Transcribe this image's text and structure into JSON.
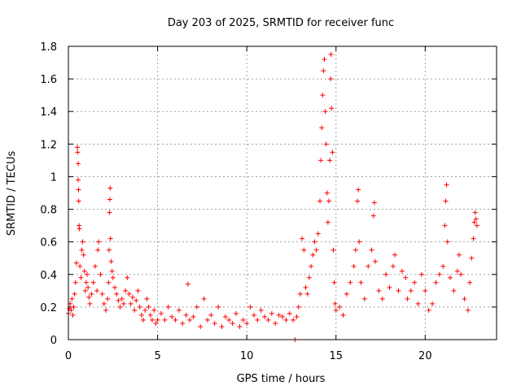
{
  "chart_data": {
    "type": "scatter",
    "title": "Day 203 of 2025, SRMTID for receiver func",
    "xlabel": "GPS time / hours",
    "ylabel": "SRMTID / TECUs",
    "xlim": [
      0,
      24
    ],
    "ylim": [
      0,
      1.8
    ],
    "x_ticks": [
      0,
      5,
      10,
      15,
      20
    ],
    "x_tick_labels": [
      "0",
      "5",
      "10",
      "15",
      "20"
    ],
    "y_ticks": [
      0,
      0.2,
      0.4,
      0.6,
      0.8,
      1.0,
      1.2,
      1.4,
      1.6,
      1.8
    ],
    "y_tick_labels": [
      "0",
      "0.2",
      "0.4",
      "0.6",
      "0.8",
      "1",
      "1.2",
      "1.4",
      "1.6",
      "1.8"
    ],
    "grid": true,
    "marker": "+",
    "series": [
      {
        "name": "SRMTID",
        "color": "#ff0000",
        "points": [
          [
            0.0,
            0.16
          ],
          [
            0.05,
            0.19
          ],
          [
            0.1,
            0.22
          ],
          [
            0.15,
            0.18
          ],
          [
            0.2,
            0.25
          ],
          [
            0.25,
            0.15
          ],
          [
            0.3,
            0.2
          ],
          [
            0.35,
            0.28
          ],
          [
            0.4,
            0.35
          ],
          [
            0.45,
            0.47
          ],
          [
            0.5,
            1.18
          ],
          [
            0.52,
            1.15
          ],
          [
            0.55,
            1.08
          ],
          [
            0.55,
            0.98
          ],
          [
            0.57,
            0.92
          ],
          [
            0.58,
            0.85
          ],
          [
            0.6,
            0.7
          ],
          [
            0.62,
            0.68
          ],
          [
            0.65,
            0.45
          ],
          [
            0.7,
            0.38
          ],
          [
            0.75,
            0.55
          ],
          [
            0.8,
            0.6
          ],
          [
            0.85,
            0.52
          ],
          [
            0.9,
            0.42
          ],
          [
            0.95,
            0.3
          ],
          [
            1.0,
            0.35
          ],
          [
            1.05,
            0.4
          ],
          [
            1.1,
            0.32
          ],
          [
            1.15,
            0.26
          ],
          [
            1.2,
            0.22
          ],
          [
            1.3,
            0.28
          ],
          [
            1.4,
            0.35
          ],
          [
            1.5,
            0.45
          ],
          [
            1.6,
            0.3
          ],
          [
            1.65,
            0.55
          ],
          [
            1.7,
            0.6
          ],
          [
            1.8,
            0.4
          ],
          [
            1.9,
            0.28
          ],
          [
            2.0,
            0.22
          ],
          [
            2.1,
            0.18
          ],
          [
            2.2,
            0.25
          ],
          [
            2.25,
            0.35
          ],
          [
            2.28,
            0.55
          ],
          [
            2.3,
            0.78
          ],
          [
            2.32,
            0.86
          ],
          [
            2.34,
            0.93
          ],
          [
            2.36,
            0.62
          ],
          [
            2.4,
            0.48
          ],
          [
            2.45,
            0.42
          ],
          [
            2.5,
            0.38
          ],
          [
            2.6,
            0.32
          ],
          [
            2.7,
            0.28
          ],
          [
            2.8,
            0.24
          ],
          [
            2.9,
            0.2
          ],
          [
            3.0,
            0.25
          ],
          [
            3.1,
            0.22
          ],
          [
            3.2,
            0.3
          ],
          [
            3.3,
            0.38
          ],
          [
            3.4,
            0.28
          ],
          [
            3.5,
            0.22
          ],
          [
            3.6,
            0.26
          ],
          [
            3.7,
            0.18
          ],
          [
            3.8,
            0.24
          ],
          [
            3.9,
            0.3
          ],
          [
            4.0,
            0.2
          ],
          [
            4.1,
            0.15
          ],
          [
            4.2,
            0.12
          ],
          [
            4.3,
            0.18
          ],
          [
            4.4,
            0.25
          ],
          [
            4.5,
            0.2
          ],
          [
            4.6,
            0.15
          ],
          [
            4.7,
            0.12
          ],
          [
            4.8,
            0.18
          ],
          [
            4.9,
            0.1
          ],
          [
            5.0,
            0.12
          ],
          [
            5.2,
            0.16
          ],
          [
            5.4,
            0.12
          ],
          [
            5.6,
            0.2
          ],
          [
            5.8,
            0.14
          ],
          [
            6.0,
            0.12
          ],
          [
            6.2,
            0.18
          ],
          [
            6.4,
            0.1
          ],
          [
            6.6,
            0.15
          ],
          [
            6.7,
            0.34
          ],
          [
            6.8,
            0.12
          ],
          [
            7.0,
            0.14
          ],
          [
            7.2,
            0.2
          ],
          [
            7.4,
            0.08
          ],
          [
            7.6,
            0.25
          ],
          [
            7.8,
            0.12
          ],
          [
            8.0,
            0.15
          ],
          [
            8.2,
            0.1
          ],
          [
            8.4,
            0.2
          ],
          [
            8.6,
            0.08
          ],
          [
            8.8,
            0.14
          ],
          [
            9.0,
            0.12
          ],
          [
            9.2,
            0.1
          ],
          [
            9.4,
            0.16
          ],
          [
            9.6,
            0.08
          ],
          [
            9.8,
            0.12
          ],
          [
            10.0,
            0.1
          ],
          [
            10.2,
            0.2
          ],
          [
            10.4,
            0.15
          ],
          [
            10.6,
            0.12
          ],
          [
            10.8,
            0.18
          ],
          [
            11.0,
            0.14
          ],
          [
            11.2,
            0.12
          ],
          [
            11.4,
            0.16
          ],
          [
            11.6,
            0.1
          ],
          [
            11.8,
            0.15
          ],
          [
            12.0,
            0.14
          ],
          [
            12.2,
            0.12
          ],
          [
            12.4,
            0.16
          ],
          [
            12.6,
            0.12
          ],
          [
            12.7,
            0.0
          ],
          [
            12.8,
            0.14
          ],
          [
            12.9,
            0.2
          ],
          [
            13.0,
            0.28
          ],
          [
            13.1,
            0.62
          ],
          [
            13.2,
            0.55
          ],
          [
            13.3,
            0.32
          ],
          [
            13.4,
            0.28
          ],
          [
            13.5,
            0.38
          ],
          [
            13.6,
            0.45
          ],
          [
            13.7,
            0.52
          ],
          [
            13.8,
            0.6
          ],
          [
            13.9,
            0.55
          ],
          [
            14.0,
            0.65
          ],
          [
            14.1,
            0.85
          ],
          [
            14.15,
            1.1
          ],
          [
            14.2,
            1.3
          ],
          [
            14.25,
            1.5
          ],
          [
            14.3,
            1.65
          ],
          [
            14.35,
            1.72
          ],
          [
            14.4,
            1.4
          ],
          [
            14.45,
            1.2
          ],
          [
            14.5,
            0.9
          ],
          [
            14.55,
            0.72
          ],
          [
            14.6,
            0.85
          ],
          [
            14.65,
            1.1
          ],
          [
            14.7,
            1.6
          ],
          [
            14.72,
            1.75
          ],
          [
            14.75,
            1.42
          ],
          [
            14.8,
            1.15
          ],
          [
            14.85,
            0.55
          ],
          [
            14.9,
            0.35
          ],
          [
            14.95,
            0.22
          ],
          [
            15.0,
            0.18
          ],
          [
            15.2,
            0.2
          ],
          [
            15.4,
            0.15
          ],
          [
            15.6,
            0.28
          ],
          [
            15.8,
            0.35
          ],
          [
            16.0,
            0.45
          ],
          [
            16.1,
            0.55
          ],
          [
            16.2,
            0.85
          ],
          [
            16.25,
            0.92
          ],
          [
            16.3,
            0.6
          ],
          [
            16.4,
            0.35
          ],
          [
            16.6,
            0.25
          ],
          [
            16.8,
            0.45
          ],
          [
            17.0,
            0.55
          ],
          [
            17.1,
            0.76
          ],
          [
            17.15,
            0.84
          ],
          [
            17.2,
            0.48
          ],
          [
            17.4,
            0.3
          ],
          [
            17.6,
            0.25
          ],
          [
            17.8,
            0.4
          ],
          [
            18.0,
            0.32
          ],
          [
            18.2,
            0.45
          ],
          [
            18.3,
            0.52
          ],
          [
            18.5,
            0.3
          ],
          [
            18.7,
            0.42
          ],
          [
            18.9,
            0.38
          ],
          [
            19.0,
            0.25
          ],
          [
            19.2,
            0.3
          ],
          [
            19.4,
            0.35
          ],
          [
            19.6,
            0.22
          ],
          [
            19.8,
            0.4
          ],
          [
            20.0,
            0.3
          ],
          [
            20.2,
            0.18
          ],
          [
            20.4,
            0.22
          ],
          [
            20.6,
            0.35
          ],
          [
            20.8,
            0.4
          ],
          [
            21.0,
            0.45
          ],
          [
            21.1,
            0.7
          ],
          [
            21.15,
            0.85
          ],
          [
            21.2,
            0.95
          ],
          [
            21.25,
            0.6
          ],
          [
            21.4,
            0.38
          ],
          [
            21.6,
            0.3
          ],
          [
            21.8,
            0.42
          ],
          [
            21.9,
            0.52
          ],
          [
            22.0,
            0.4
          ],
          [
            22.2,
            0.25
          ],
          [
            22.4,
            0.18
          ],
          [
            22.5,
            0.35
          ],
          [
            22.6,
            0.5
          ],
          [
            22.7,
            0.62
          ],
          [
            22.75,
            0.72
          ],
          [
            22.8,
            0.78
          ],
          [
            22.85,
            0.74
          ],
          [
            22.9,
            0.7
          ]
        ]
      }
    ]
  }
}
